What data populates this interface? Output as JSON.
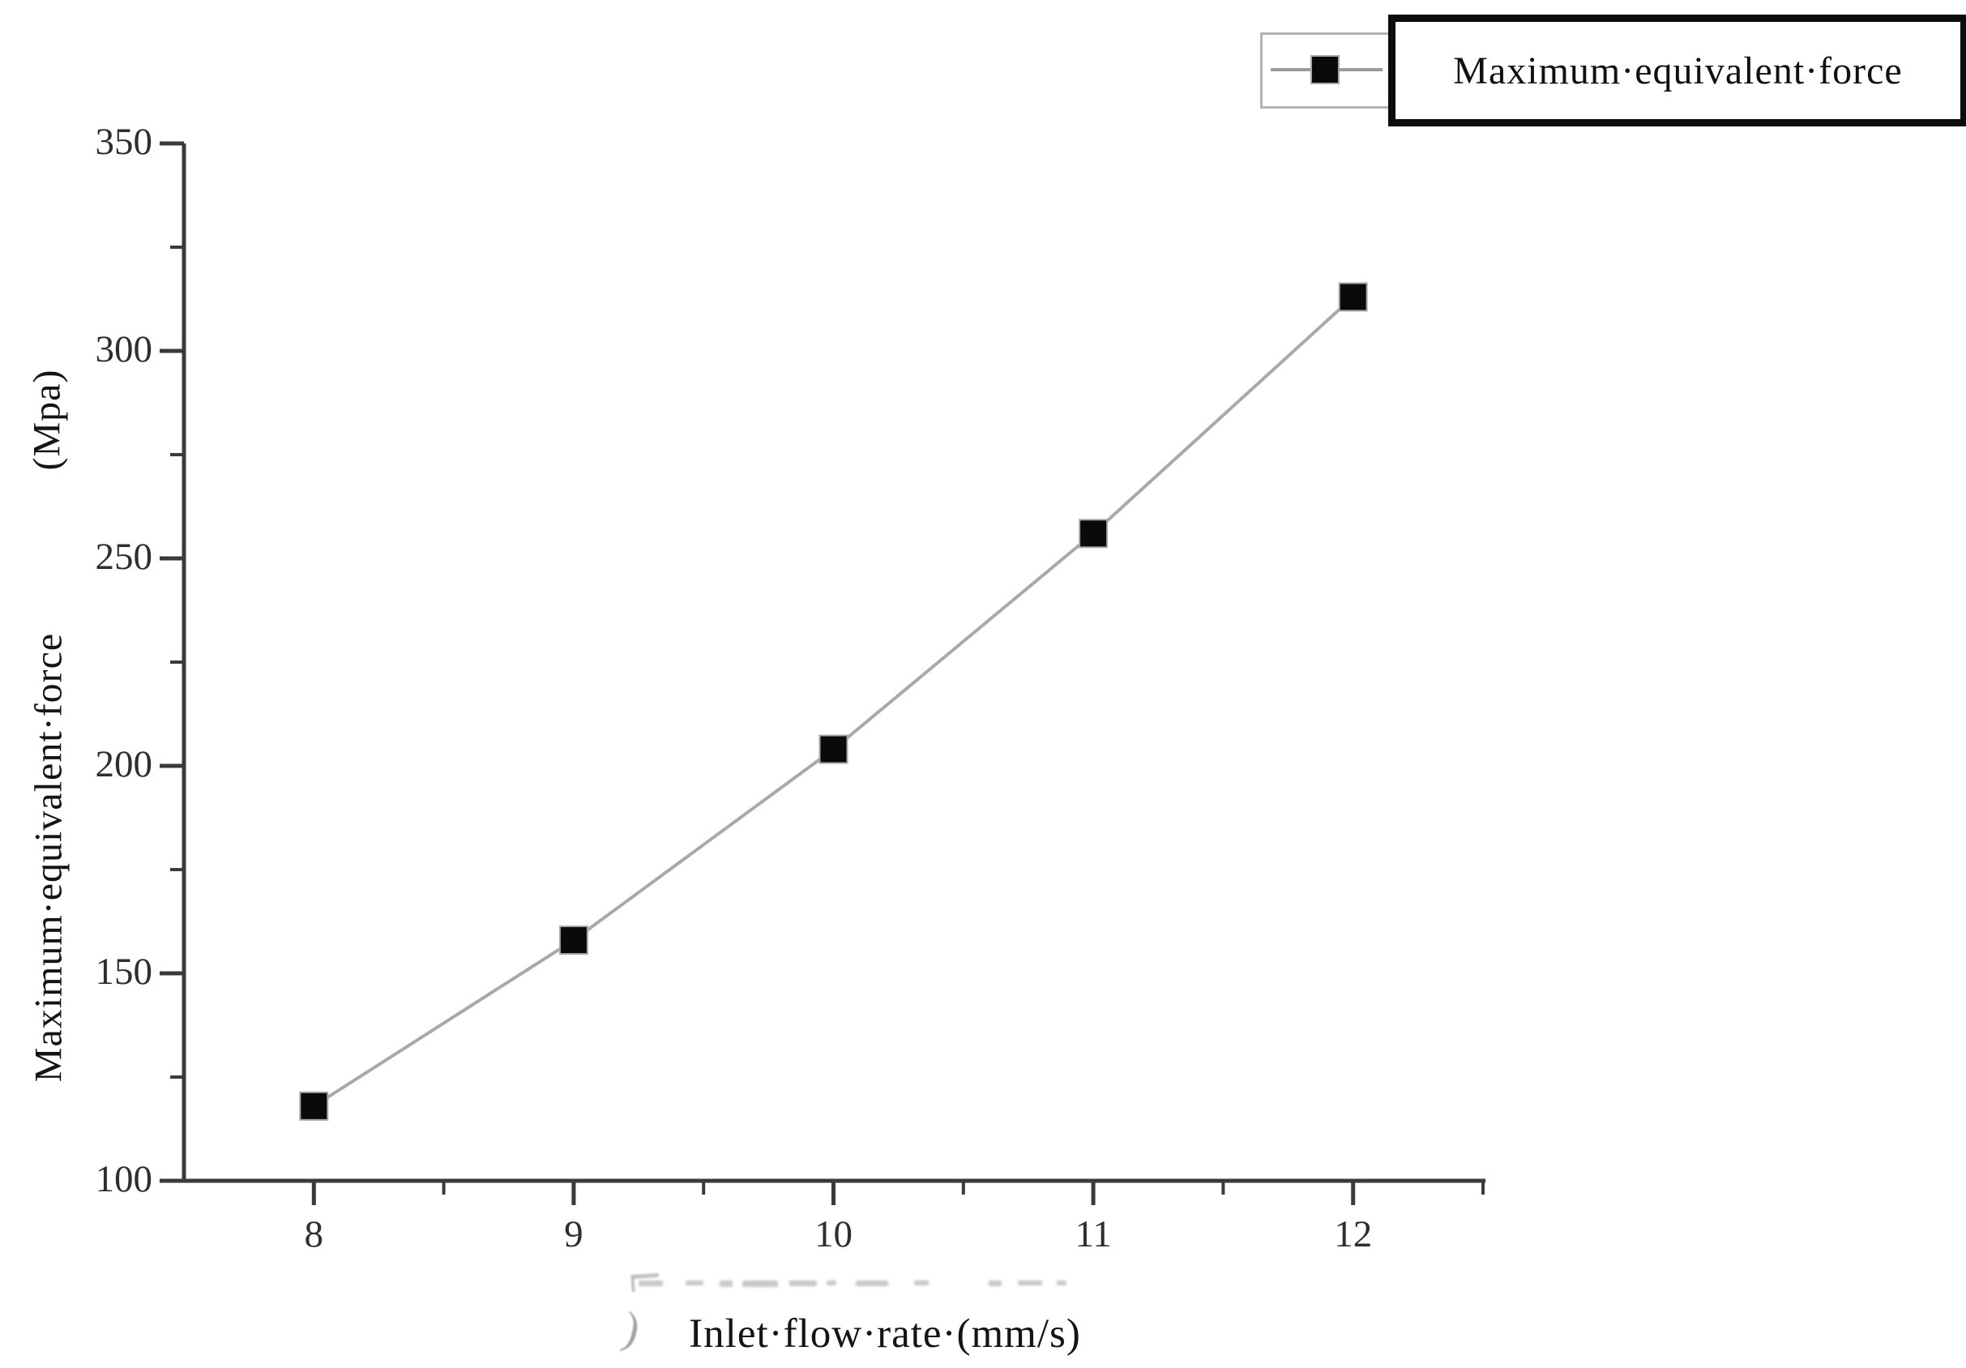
{
  "chart_data": {
    "type": "line",
    "title": "",
    "x": [
      8,
      9,
      10,
      11,
      12
    ],
    "series": [
      {
        "name": "Maximum equivalent force",
        "values": [
          118,
          158,
          204,
          256,
          313
        ]
      }
    ],
    "xlabel": "Inlet·flow·rate·(mm/s)",
    "ylabel": "Maximum·equivalent·force (Mpa)",
    "xlim": [
      7.5,
      12.5
    ],
    "ylim": [
      100,
      350
    ],
    "x_ticks": [
      8,
      9,
      10,
      11,
      12
    ],
    "x_minor_ticks": [
      8.5,
      9.5,
      10.5,
      11.5,
      12.5
    ],
    "y_ticks": [
      100,
      150,
      200,
      250,
      300,
      350
    ],
    "y_minor_ticks": [
      125,
      175,
      225,
      275,
      325
    ],
    "grid": false,
    "legend_position": "top-right",
    "marker": "filled-square",
    "line_color": "#a9a9a9",
    "marker_color": "#0a0a0a",
    "axis_color": "#3a3a3a"
  },
  "legend": {
    "label": "Maximum·equivalent·force"
  },
  "axis_labels": {
    "x": "Inlet·flow·rate·(mm/s)",
    "y_main": "Maximum·equivalent·force",
    "y_unit": "(Mpa)"
  }
}
